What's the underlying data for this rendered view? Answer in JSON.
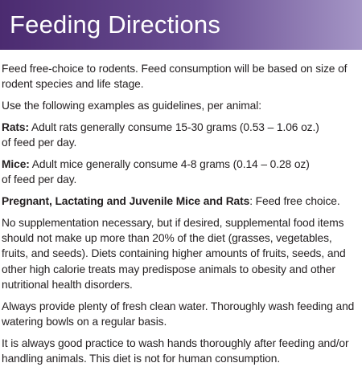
{
  "header": {
    "title": "Feeding Directions"
  },
  "paragraphs": [
    {
      "lines": [
        "Feed free-choice to rodents. Feed consumption will be based on size of",
        "rodent species and life stage."
      ]
    },
    {
      "lines": [
        "Use the following examples as guidelines, per animal:"
      ]
    },
    {
      "label": "Rats:",
      "lines": [
        "Adult rats generally consume 15-30 grams (0.53 – 1.06 oz.)",
        "of feed per day."
      ]
    },
    {
      "label": "Mice:",
      "lines": [
        "Adult mice generally consume 4-8 grams (0.14 – 0.28 oz)",
        "of feed per day."
      ]
    },
    {
      "label": "Pregnant, Lactating and Juvenile Mice and Rats",
      "lines": [
        ": Feed free choice."
      ]
    },
    {
      "lines": [
        "No supplementation necessary, but if desired, supplemental food items",
        "should not make up more than 20% of the diet (grasses, vegetables,",
        "fruits, and seeds). Diets containing higher amounts of fruits, seeds, and",
        "other high calorie treats may predispose animals to obesity and other",
        "nutritional health disorders."
      ]
    },
    {
      "lines": [
        "Always provide plenty of fresh clean water. Thoroughly wash feeding and",
        "watering bowls on a regular basis."
      ]
    },
    {
      "lines": [
        "It is always good practice to wash hands thoroughly after feeding and/or",
        "handling animals. This diet is not for human consumption."
      ]
    }
  ]
}
